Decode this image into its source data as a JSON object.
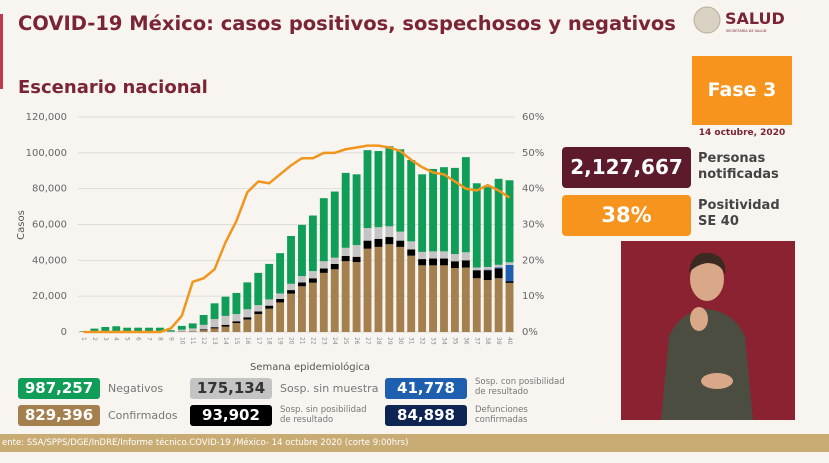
{
  "header": {
    "title": "COVID-19 México: casos positivos, sospechosos y negativos",
    "subtitle": "Escenario nacional",
    "logo_text": "SALUD",
    "logo_subtext": "SECRETARÍA DE SALUD"
  },
  "side": {
    "phase": "Fase 3",
    "date": "14 octubre, 2020",
    "notified_value": "2,127,667",
    "notified_label_1": "Personas",
    "notified_label_2": "notificadas",
    "positivity_value": "38%",
    "positivity_label_1": "Positividad",
    "positivity_label_2": "SE 40"
  },
  "legend": [
    {
      "value": "987,257",
      "label": "Negativos",
      "color": "#0f9d58"
    },
    {
      "value": "829,396",
      "label": "Confirmados",
      "color": "#a5804f"
    },
    {
      "value": "175,134",
      "label": "Sosp. sin muestra",
      "color": "#c4c4c4"
    },
    {
      "value": "93,902",
      "label1": "Sosp. sin posibilidad",
      "label2": "de resultado",
      "color": "#000000"
    },
    {
      "value": "41,778",
      "label1": "Sosp. con posibilidad",
      "label2": "de resultado",
      "color": "#1f5fb0"
    },
    {
      "value": "84,898",
      "label1": "Defunciones",
      "label2": "confirmadas",
      "color": "#0e2452"
    }
  ],
  "footer": "ente: SSA/SPPS/DGE/InDRE/Informe técnico.COVID-19 /México- 14 octubre 2020 (corte 9:00hrs)",
  "colors": {
    "accent": "#7a2535",
    "orange": "#f7941d",
    "line": "#f0961e"
  },
  "chart_data": {
    "type": "bar",
    "stacked": true,
    "xlabel": "Semana epidemiológica",
    "ylabel": "Casos",
    "ylim": [
      0,
      120000
    ],
    "y2lim": [
      0,
      60
    ],
    "yticks": [
      "0",
      "20,000",
      "40,000",
      "60,000",
      "80,000",
      "100,000",
      "120,000"
    ],
    "y2ticks": [
      "0%",
      "10%",
      "20%",
      "30%",
      "40%",
      "50%",
      "60%"
    ],
    "grid": true,
    "categories": [
      "1",
      "2",
      "3",
      "4",
      "5",
      "6",
      "7",
      "8",
      "9",
      "10",
      "11",
      "12",
      "13",
      "14",
      "15",
      "16",
      "17",
      "18",
      "19",
      "20",
      "21",
      "22",
      "23",
      "24",
      "25",
      "26",
      "27",
      "28",
      "29",
      "30",
      "31",
      "32",
      "33",
      "34",
      "35",
      "36",
      "37",
      "38",
      "39",
      "40"
    ],
    "series": [
      {
        "key": "confirmados",
        "color": "#a5804f",
        "values": [
          0,
          0,
          0,
          0,
          0,
          0,
          0,
          0,
          0,
          300,
          500,
          1000,
          2000,
          3000,
          5000,
          7000,
          10000,
          13000,
          16500,
          21400,
          25500,
          27500,
          33000,
          35000,
          39500,
          39000,
          46500,
          47500,
          49000,
          47500,
          42600,
          37200,
          37200,
          37200,
          35700,
          36000,
          30000,
          29000,
          30000,
          27400
        ]
      },
      {
        "key": "sosp_sin_posibilidad",
        "color": "#000000",
        "values": [
          0,
          0,
          0,
          0,
          0,
          0,
          0,
          0,
          0,
          0,
          0,
          500,
          700,
          1000,
          1000,
          1200,
          1500,
          1700,
          2000,
          2000,
          2200,
          2500,
          2500,
          3000,
          3000,
          3000,
          4500,
          4500,
          4000,
          3500,
          3500,
          3500,
          3800,
          3800,
          3800,
          4000,
          4500,
          5500,
          5500,
          1000
        ]
      },
      {
        "key": "sosp_con_posibilidad",
        "color": "#1f5fb0",
        "values": [
          0,
          0,
          0,
          0,
          0,
          0,
          0,
          0,
          0,
          0,
          0,
          0,
          0,
          0,
          0,
          0,
          0,
          0,
          0,
          0,
          0,
          0,
          0,
          0,
          0,
          0,
          0,
          0,
          0,
          0,
          0,
          0,
          0,
          0,
          0,
          0,
          0,
          300,
          500,
          9000
        ]
      },
      {
        "key": "sosp_sin_muestra",
        "color": "#c4c4c4",
        "values": [
          200,
          200,
          200,
          200,
          200,
          200,
          200,
          200,
          200,
          1000,
          1500,
          2500,
          4500,
          5000,
          4000,
          4500,
          3500,
          3500,
          3000,
          3500,
          3500,
          4000,
          4000,
          3500,
          4500,
          6500,
          7000,
          6500,
          6000,
          5000,
          4500,
          4000,
          4000,
          4000,
          4000,
          4500,
          1500,
          1500,
          1500,
          1500
        ]
      },
      {
        "key": "negativos",
        "color": "#0f9d58",
        "values": [
          300,
          1700,
          2600,
          3000,
          2200,
          2200,
          2200,
          2200,
          800,
          2100,
          2800,
          5500,
          8800,
          10700,
          11800,
          15000,
          18000,
          19800,
          22500,
          26700,
          28600,
          31000,
          35200,
          36900,
          41800,
          39500,
          43500,
          42500,
          44700,
          46000,
          45400,
          43300,
          46000,
          47000,
          48100,
          53100,
          47000,
          44700,
          48000,
          45800
        ]
      }
    ],
    "line": {
      "key": "positividad",
      "axis": "right",
      "color": "#f0961e",
      "values": [
        0,
        0,
        0,
        0,
        0,
        0,
        0,
        0,
        1,
        4.5,
        14,
        15,
        17.5,
        25,
        31,
        39,
        42,
        41.5,
        44,
        46.5,
        48.5,
        48.5,
        50,
        50,
        51,
        51.5,
        52,
        52,
        51.5,
        50.5,
        48,
        46,
        44.5,
        44,
        42,
        40,
        39.5,
        41,
        39.5,
        37.5
      ]
    }
  }
}
